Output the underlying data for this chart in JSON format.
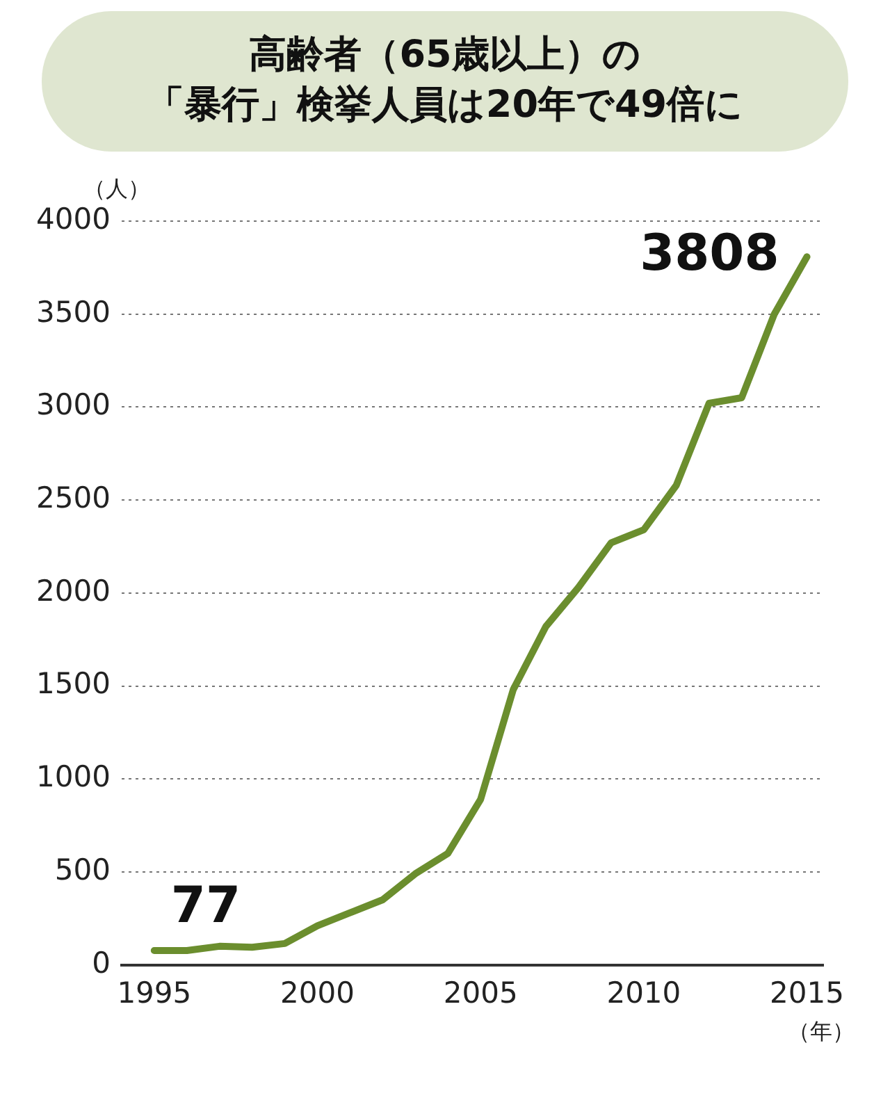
{
  "chart_data": {
    "type": "line",
    "title": "高齢者（65歳以上）の",
    "subtitle": "「暴行」検挙人員は20年で49倍に",
    "ylabel": "（人）",
    "xlabel": "（年）",
    "x": [
      1995,
      1996,
      1997,
      1998,
      1999,
      2000,
      2001,
      2002,
      2003,
      2004,
      2005,
      2006,
      2007,
      2008,
      2009,
      2010,
      2011,
      2012,
      2013,
      2014,
      2015
    ],
    "series": [
      {
        "color": "#6b8e2e",
        "values": [
          77,
          77,
          100,
          95,
          115,
          210,
          280,
          350,
          490,
          600,
          890,
          1480,
          1820,
          2030,
          2270,
          2340,
          2580,
          3020,
          3050,
          3500,
          3808
        ]
      }
    ],
    "annotations": [
      {
        "text": "77",
        "x": 1995,
        "y": 77
      },
      {
        "text": "3808",
        "x": 2015,
        "y": 3808
      }
    ],
    "xlim": [
      1994,
      2015.5
    ],
    "xticks": [
      1995,
      2000,
      2005,
      2010,
      2015
    ],
    "ylim": [
      0,
      4000
    ],
    "yticks": [
      0,
      500,
      1000,
      1500,
      2000,
      2500,
      3000,
      3500,
      4000
    ],
    "grid": "y",
    "legend": false,
    "marker": "none",
    "line_style": "solid"
  }
}
